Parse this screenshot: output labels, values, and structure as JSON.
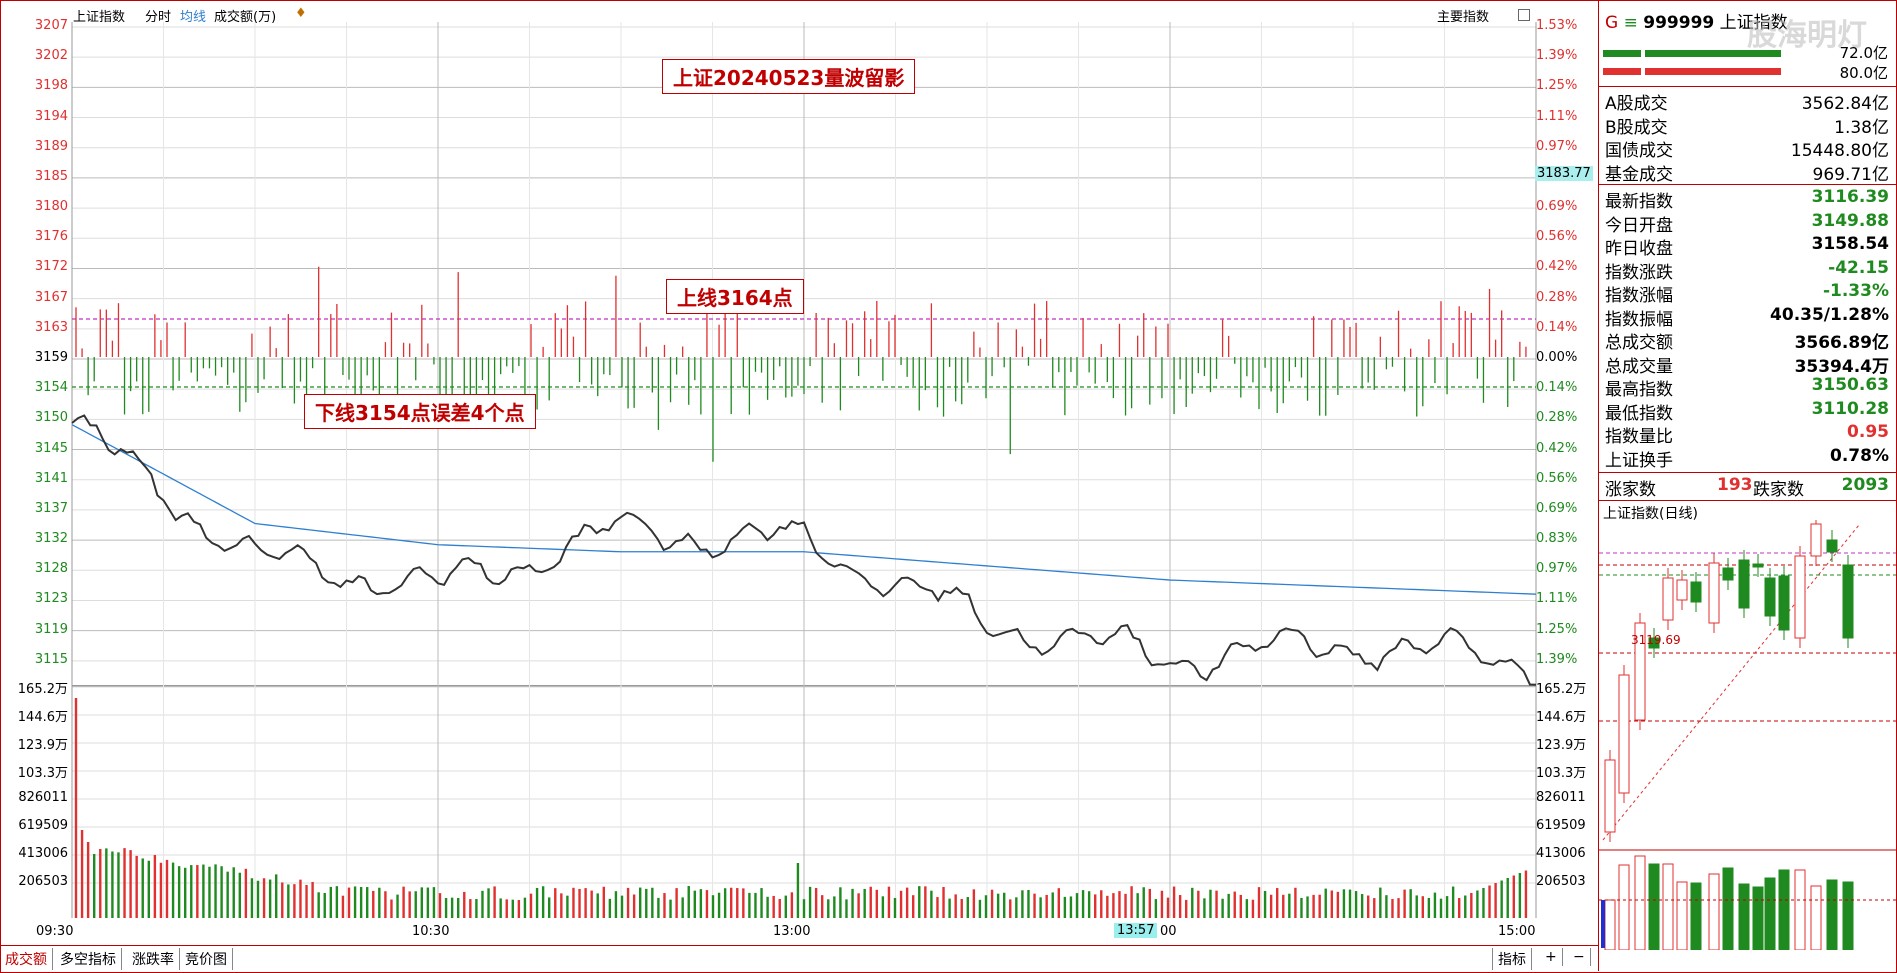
{
  "header": {
    "index_name": "上证指数",
    "mode": "分时",
    "avg_line": "均线",
    "volume_unit": "成交额(万)",
    "main_index_button": "主要指数"
  },
  "colors": {
    "up": "#e03030",
    "down": "#1f8a1f",
    "accent": "#c00000",
    "avg": "#2f7fd0",
    "price": "#333333"
  },
  "axes": {
    "price_ticks": [
      "3207",
      "3202",
      "3198",
      "3194",
      "3189",
      "3185",
      "3180",
      "3176",
      "3172",
      "3167",
      "3163",
      "3159",
      "3154",
      "3150",
      "3145",
      "3141",
      "3137",
      "3132",
      "3128",
      "3123",
      "3119",
      "3115"
    ],
    "pct_ticks": [
      "1.53%",
      "1.39%",
      "1.25%",
      "1.11%",
      "0.97%",
      "0.83%",
      "0.69%",
      "0.56%",
      "0.42%",
      "0.28%",
      "0.14%",
      "0.00%",
      "0.14%",
      "0.28%",
      "0.42%",
      "0.56%",
      "0.69%",
      "0.83%",
      "0.97%",
      "1.11%",
      "1.25%",
      "1.39%"
    ],
    "volume_ticks": [
      "165.2万",
      "144.6万",
      "123.9万",
      "103.3万",
      "826011",
      "619509",
      "413006",
      "206503"
    ],
    "time_ticks": [
      "09:30",
      "10:30",
      "13:00",
      "00",
      "15:00"
    ],
    "cursor_price": "3183.77",
    "cursor_time": "13:57"
  },
  "annotations": {
    "title": "上证20240523量波留影",
    "upper": "上线3164点",
    "lower": "下线3154点误差4个点"
  },
  "bottom_tabs": [
    "成交额",
    "多空指标",
    "涨跌率",
    "竞价图"
  ],
  "bottom_right": {
    "indicator": "指标",
    "plus": "+",
    "minus": "−"
  },
  "panel": {
    "code_prefix": "G",
    "code_sep": "≡",
    "code": "999999",
    "name": "上证指数",
    "watermark": "股海明灯",
    "bar_labels": [
      "72.0亿",
      "80.0亿"
    ],
    "turnover": [
      {
        "k": "A股成交",
        "v": "3562.84亿"
      },
      {
        "k": "B股成交",
        "v": "1.38亿"
      },
      {
        "k": "国债成交",
        "v": "15448.80亿"
      },
      {
        "k": "基金成交",
        "v": "969.71亿"
      }
    ],
    "stats": [
      {
        "k": "最新指数",
        "v": "3116.39",
        "c": "down"
      },
      {
        "k": "今日开盘",
        "v": "3149.88",
        "c": "down"
      },
      {
        "k": "昨日收盘",
        "v": "3158.54",
        "c": "plain"
      },
      {
        "k": "指数涨跌",
        "v": "-42.15",
        "c": "down"
      },
      {
        "k": "指数涨幅",
        "v": "-1.33%",
        "c": "down"
      },
      {
        "k": "指数振幅",
        "v": "40.35/1.28%",
        "c": "plain"
      },
      {
        "k": "总成交额",
        "v": "3566.89亿",
        "c": "plain"
      },
      {
        "k": "总成交量",
        "v": "35394.4万",
        "c": "plain"
      },
      {
        "k": "最高指数",
        "v": "3150.63",
        "c": "down"
      },
      {
        "k": "最低指数",
        "v": "3110.28",
        "c": "down"
      },
      {
        "k": "指数量比",
        "v": "0.95",
        "c": "up"
      },
      {
        "k": "上证换手",
        "v": "0.78%",
        "c": "plain"
      }
    ],
    "breadth": {
      "up_label": "涨家数",
      "up": "193",
      "down_label": "跌家数",
      "down": "2093"
    },
    "daily_title": "上证指数(日线)",
    "daily_mark": "3119.69"
  },
  "chart_data": {
    "type": "line",
    "x": [
      "09:30",
      "10:00",
      "10:30",
      "11:00",
      "11:30/13:00",
      "13:30",
      "14:00",
      "14:30",
      "15:00"
    ],
    "price": [
      3150.0,
      3131.0,
      3127.0,
      3135.0,
      3133.5,
      3122.0,
      3117.0,
      3119.0,
      3116.4
    ],
    "avg": [
      3150.0,
      3136.0,
      3133.0,
      3132.0,
      3132.0,
      3130.0,
      3128.0,
      3127.0,
      3126.0
    ],
    "prev_close": 3158.54,
    "ylim": [
      3113,
      3207
    ]
  }
}
